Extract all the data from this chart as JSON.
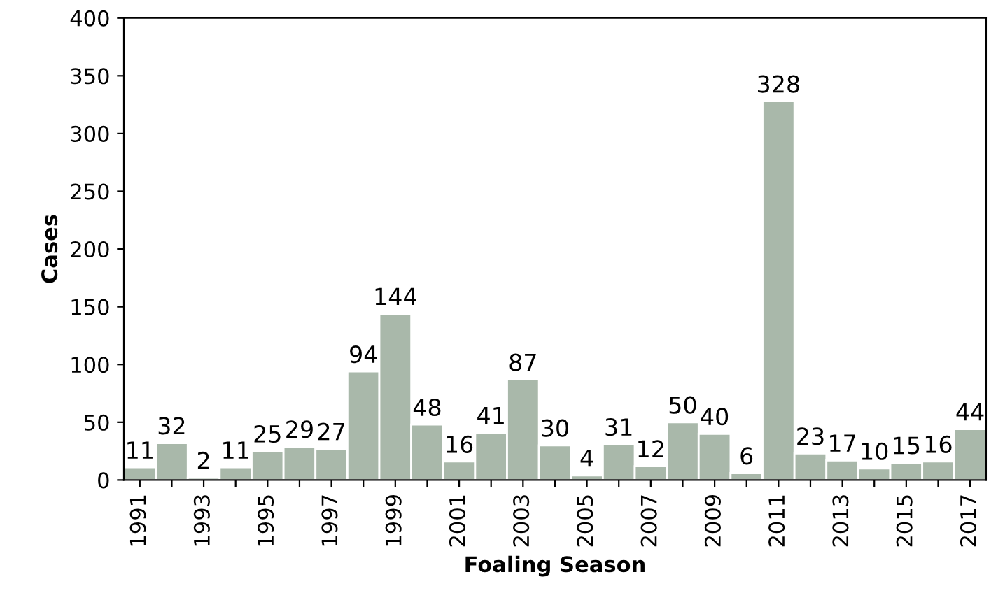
{
  "chart_data": {
    "type": "bar",
    "xlabel": "Foaling Season",
    "ylabel": "Cases",
    "categories": [
      "1991",
      null,
      "1993",
      null,
      "1995",
      null,
      "1997",
      null,
      "1999",
      null,
      "2001",
      null,
      "2003",
      null,
      "2005",
      null,
      "2007",
      null,
      "2009",
      null,
      "2011",
      null,
      "2013",
      null,
      "2015",
      null,
      "2017"
    ],
    "values": [
      11,
      32,
      2,
      11,
      25,
      29,
      27,
      94,
      144,
      48,
      16,
      41,
      87,
      30,
      4,
      31,
      12,
      50,
      40,
      6,
      328,
      23,
      17,
      10,
      15,
      16,
      44
    ],
    "color": "#a9b8aa",
    "data_labels": true,
    "ylim": [
      0,
      400
    ],
    "yticks": [
      0,
      50,
      100,
      150,
      200,
      250,
      300,
      350,
      400
    ],
    "grid": false,
    "legend": false
  }
}
